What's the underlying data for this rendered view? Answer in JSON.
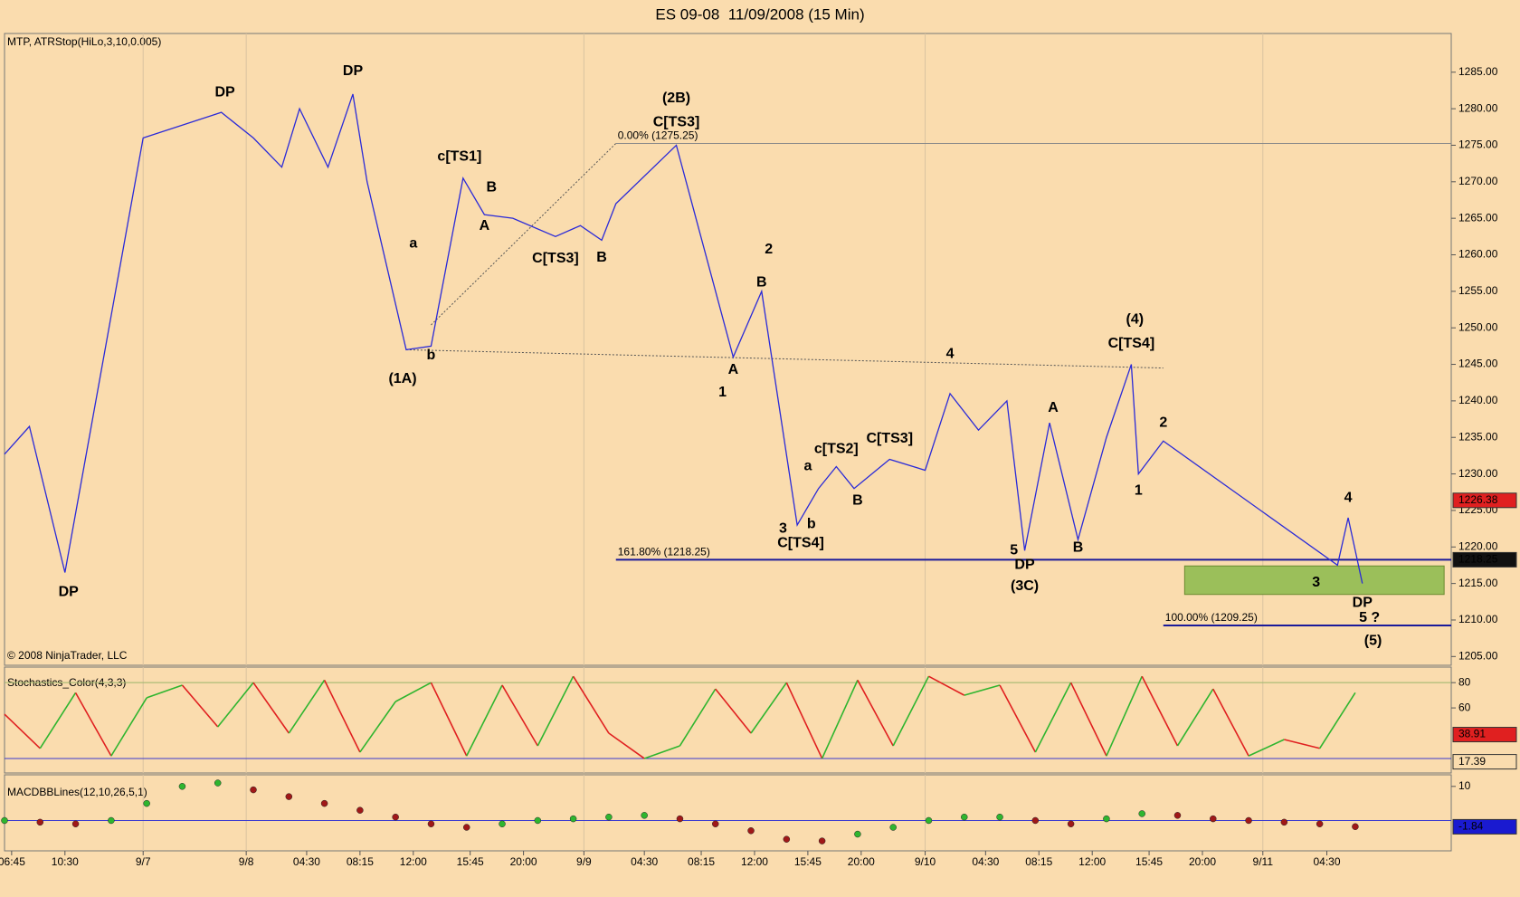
{
  "chart_data": [
    {
      "type": "line",
      "title": "ES 09-08  11/09/2008 (15 Min)",
      "subtitle": "MTP, ATRStop(HiLo,3,10,0.005)",
      "copyright": "© 2008 NinjaTrader, LLC",
      "x": [
        0,
        7,
        17,
        39,
        61,
        70,
        78,
        83,
        91,
        98,
        102,
        113,
        120,
        129,
        135,
        143,
        155,
        162,
        168,
        172,
        189,
        205,
        213,
        223,
        229,
        234,
        239,
        249,
        259,
        266,
        274,
        282,
        287,
        294,
        302,
        310,
        317,
        319,
        326,
        375,
        378,
        382
      ],
      "series": [
        {
          "color": "#2a2ad8",
          "values": [
            1232.7,
            1236.5,
            1216.5,
            1276,
            1279.5,
            1276,
            1272,
            1280,
            1272,
            1282,
            1270,
            1247,
            1247.5,
            1270.5,
            1265.5,
            1265,
            1262.5,
            1264,
            1262,
            1267,
            1275,
            1246,
            1255,
            1223,
            1228,
            1231,
            1228,
            1232,
            1230.5,
            1241,
            1236,
            1240,
            1219.5,
            1237,
            1221,
            1235,
            1245,
            1230,
            1234.5,
            1217.5,
            1224,
            1215
          ]
        }
      ],
      "xlim": [
        0,
        407
      ],
      "xticks": [
        {
          "value": 2,
          "label": "06:45"
        },
        {
          "value": 17,
          "label": "10:30"
        },
        {
          "value": 39,
          "label": "9/7"
        },
        {
          "value": 68,
          "label": "9/8"
        },
        {
          "value": 85,
          "label": "04:30"
        },
        {
          "value": 100,
          "label": "08:15"
        },
        {
          "value": 115,
          "label": "12:00"
        },
        {
          "value": 131,
          "label": "15:45"
        },
        {
          "value": 146,
          "label": "20:00"
        },
        {
          "value": 163,
          "label": "9/9"
        },
        {
          "value": 180,
          "label": "04:30"
        },
        {
          "value": 196,
          "label": "08:15"
        },
        {
          "value": 211,
          "label": "12:00"
        },
        {
          "value": 226,
          "label": "15:45"
        },
        {
          "value": 241,
          "label": "20:00"
        },
        {
          "value": 259,
          "label": "9/10"
        },
        {
          "value": 276,
          "label": "04:30"
        },
        {
          "value": 291,
          "label": "08:15"
        },
        {
          "value": 306,
          "label": "12:00"
        },
        {
          "value": 322,
          "label": "15:45"
        },
        {
          "value": 337,
          "label": "20:00"
        },
        {
          "value": 354,
          "label": "9/11"
        },
        {
          "value": 372,
          "label": "04:30"
        }
      ],
      "ylim": [
        1203.8,
        1290.3
      ],
      "yticks": [
        {
          "value": 1205,
          "label": "1205.00"
        },
        {
          "value": 1210,
          "label": "1210.00"
        },
        {
          "value": 1215,
          "label": "1215.00"
        },
        {
          "value": 1220,
          "label": "1220.00"
        },
        {
          "value": 1225,
          "label": "1225.00"
        },
        {
          "value": 1230,
          "label": "1230.00"
        },
        {
          "value": 1235,
          "label": "1235.00"
        },
        {
          "value": 1240,
          "label": "1240.00"
        },
        {
          "value": 1245,
          "label": "1245.00"
        },
        {
          "value": 1250,
          "label": "1250.00"
        },
        {
          "value": 1255,
          "label": "1255.00"
        },
        {
          "value": 1260,
          "label": "1260.00"
        },
        {
          "value": 1265,
          "label": "1265.00"
        },
        {
          "value": 1270,
          "label": "1270.00"
        },
        {
          "value": 1275,
          "label": "1275.00"
        },
        {
          "value": 1280,
          "label": "1280.00"
        },
        {
          "value": 1285,
          "label": "1285.00"
        }
      ],
      "levels": [
        {
          "label": "0.00% (1275.25)",
          "value": 1275.25,
          "x": [
            172,
            407
          ],
          "color": "#8a8a8a"
        },
        {
          "label": "161.80% (1218.25)",
          "value": 1218.25,
          "x": [
            172,
            407
          ],
          "color": "#1a1a9a"
        },
        {
          "label": "100.00% (1209.25)",
          "value": 1209.25,
          "x": [
            326,
            407
          ],
          "color": "#1a1a9a"
        }
      ],
      "trendlines": [
        {
          "x": [
            113,
            326
          ],
          "y": [
            1247,
            1244.5
          ]
        },
        {
          "x": [
            120,
            172
          ],
          "y": [
            1250.4,
            1275.25
          ]
        }
      ],
      "zone": {
        "x": [
          332,
          405
        ],
        "y": [
          1213.5,
          1217.4
        ],
        "color": "#9bbf5a"
      },
      "price_tags": [
        {
          "value": 1226.38,
          "color": "#e02020"
        },
        {
          "value": 1218.25,
          "color": "#111111"
        }
      ],
      "annotations": [
        {
          "text": "DP",
          "x": 62,
          "y": 1282.2,
          "color": "#e01010"
        },
        {
          "text": "DP",
          "x": 98,
          "y": 1285.1,
          "color": "#e01010"
        },
        {
          "text": "c[TS1]",
          "x": 128,
          "y": 1273.4,
          "color": "#e01010"
        },
        {
          "text": "B",
          "x": 137,
          "y": 1269.2,
          "color": "#1a1ad0"
        },
        {
          "text": "A",
          "x": 135,
          "y": 1263.9,
          "color": "#1a1ad0"
        },
        {
          "text": "a",
          "x": 115,
          "y": 1261.5,
          "color": "#e01010"
        },
        {
          "text": "b",
          "x": 120,
          "y": 1246.2,
          "color": "#e01010"
        },
        {
          "text": "(1A)",
          "x": 112,
          "y": 1243.0,
          "color": "#7a1a7a"
        },
        {
          "text": "C[TS3]",
          "x": 155,
          "y": 1259.5,
          "color": "#1a1ad0"
        },
        {
          "text": "B",
          "x": 168,
          "y": 1259.6,
          "color": "#e01010"
        },
        {
          "text": "(2B)",
          "x": 189,
          "y": 1281.4,
          "color": "#7a1a7a"
        },
        {
          "text": "C[TS3]",
          "x": 189,
          "y": 1278.1,
          "color": "#e01010"
        },
        {
          "text": "2",
          "x": 215,
          "y": 1260.7,
          "color": "#7a1a7a"
        },
        {
          "text": "B",
          "x": 213,
          "y": 1256.2,
          "color": "#1a1ad0"
        },
        {
          "text": "A",
          "x": 205,
          "y": 1244.2,
          "color": "#1a1ad0"
        },
        {
          "text": "1",
          "x": 202,
          "y": 1241.1,
          "color": "#7a1a7a"
        },
        {
          "text": "a",
          "x": 226,
          "y": 1231.0,
          "color": "#e01010"
        },
        {
          "text": "b",
          "x": 227,
          "y": 1223.1,
          "color": "#e01010"
        },
        {
          "text": "3",
          "x": 219,
          "y": 1222.5,
          "color": "#7a1a7a"
        },
        {
          "text": "C[TS4]",
          "x": 224,
          "y": 1220.5,
          "color": "#1a1ad0"
        },
        {
          "text": "c[TS2]",
          "x": 234,
          "y": 1233.4,
          "color": "#e01010"
        },
        {
          "text": "C[TS3]",
          "x": 249,
          "y": 1234.8,
          "color": "#e01010"
        },
        {
          "text": "B",
          "x": 240,
          "y": 1226.3,
          "color": "#e01010"
        },
        {
          "text": "4",
          "x": 266,
          "y": 1246.4,
          "color": "#7a1a7a"
        },
        {
          "text": "A",
          "x": 295,
          "y": 1239.0,
          "color": "#e01010"
        },
        {
          "text": "B",
          "x": 302,
          "y": 1219.9,
          "color": "#e01010"
        },
        {
          "text": "5",
          "x": 284,
          "y": 1219.5,
          "color": "#7a1a7a"
        },
        {
          "text": "DP",
          "x": 287,
          "y": 1217.5,
          "color": "#1a1ad0"
        },
        {
          "text": "(3C)",
          "x": 287,
          "y": 1214.6,
          "color": "#7a1a7a"
        },
        {
          "text": "(4)",
          "x": 318,
          "y": 1251.1,
          "color": "#7a1a7a"
        },
        {
          "text": "C[TS4]",
          "x": 317,
          "y": 1247.8,
          "color": "#e01010"
        },
        {
          "text": "2",
          "x": 326,
          "y": 1237.0,
          "color": "#7a1a7a"
        },
        {
          "text": "1",
          "x": 319,
          "y": 1227.7,
          "color": "#7a1a7a"
        },
        {
          "text": "4",
          "x": 378,
          "y": 1226.7,
          "color": "#7a1a7a"
        },
        {
          "text": "3",
          "x": 369,
          "y": 1215.1,
          "color": "#7a1a7a"
        },
        {
          "text": "DP",
          "x": 382,
          "y": 1212.3,
          "color": "#1a1ad0"
        },
        {
          "text": "5 ?",
          "x": 384,
          "y": 1210.3,
          "color": "#7a1a7a"
        },
        {
          "text": "(5)",
          "x": 385,
          "y": 1207.1,
          "color": "#7a1a7a"
        },
        {
          "text": "DP",
          "x": 18,
          "y": 1213.8,
          "color": "#1a1ad0"
        }
      ]
    },
    {
      "type": "oscillator",
      "title": "Stochastics_Color(4,3,3)",
      "x": [
        0,
        10,
        20,
        30,
        40,
        50,
        60,
        70,
        80,
        90,
        100,
        110,
        120,
        130,
        140,
        150,
        160,
        170,
        180,
        190,
        200,
        210,
        220,
        230,
        240,
        250,
        260,
        270,
        280,
        290,
        300,
        310,
        320,
        330,
        340,
        350,
        360,
        370,
        380
      ],
      "series": [
        {
          "color": "#2fb52f",
          "values": [
            55,
            28,
            72,
            22,
            68,
            78,
            45,
            80,
            40,
            82,
            25,
            65,
            80,
            22,
            78,
            30,
            85,
            40,
            20,
            30,
            75,
            40,
            80,
            20,
            82,
            30,
            85,
            70,
            78,
            25,
            80,
            22,
            85,
            30,
            75,
            22,
            35,
            28,
            72
          ]
        }
      ],
      "xlim": [
        0,
        407
      ],
      "ylim": [
        8.5,
        92.3
      ],
      "yticks": [
        60,
        80
      ],
      "hlines": [
        {
          "value": 80,
          "color": "#9bb56a"
        },
        {
          "value": 20,
          "color": "#3a3ad0"
        }
      ],
      "price_tags": [
        {
          "value": 38.91,
          "color": "#e02020"
        },
        {
          "value": 17.39,
          "color": "#fadcae"
        }
      ]
    },
    {
      "type": "dots",
      "title": "MACDBBLines(12,10,26,5,1)",
      "x": [
        0,
        10,
        20,
        30,
        40,
        50,
        60,
        70,
        80,
        90,
        100,
        110,
        120,
        130,
        140,
        150,
        160,
        170,
        180,
        190,
        200,
        210,
        220,
        230,
        240,
        250,
        260,
        270,
        280,
        290,
        300,
        310,
        320,
        330,
        340,
        350,
        360,
        370,
        380
      ],
      "series": [
        {
          "color": "#2fb52f",
          "values": [
            0,
            -0.5,
            -1,
            0,
            5,
            10,
            11,
            9,
            7,
            5,
            3,
            1,
            -1,
            -2,
            -1,
            0,
            0.5,
            1,
            1.5,
            0.5,
            -1,
            -3,
            -5.5,
            -6,
            -4,
            -2,
            0,
            1,
            1,
            0,
            -1,
            0.5,
            2,
            1.5,
            0.5,
            0,
            -0.5,
            -1,
            -1.8
          ]
        }
      ],
      "xlim": [
        0,
        407
      ],
      "ylim": [
        -8.9,
        13.4
      ],
      "yticks": [
        10
      ],
      "hlines": [
        {
          "value": 0,
          "color": "#3a3ad0"
        }
      ],
      "price_tags": [
        {
          "value": -1.84,
          "color": "#1a1ad0"
        }
      ]
    }
  ]
}
